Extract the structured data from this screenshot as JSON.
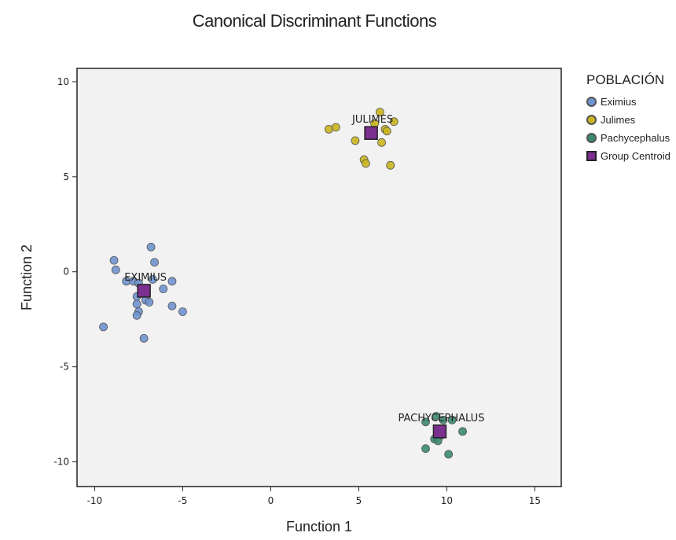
{
  "chart_data": {
    "type": "scatter",
    "title": "Canonical Discriminant Functions",
    "xlabel": "Function 1",
    "ylabel": "Function 2",
    "xlim": [
      -11,
      16.5
    ],
    "ylim": [
      -11.3,
      10.7
    ],
    "xticks": [
      -10,
      -5,
      0,
      5,
      10,
      15
    ],
    "yticks": [
      -10,
      -5,
      0,
      5,
      10
    ],
    "legend_title": "POBLACIÓN",
    "series": [
      {
        "name": "Eximius",
        "color": "#6f93d0",
        "points": [
          [
            -9.5,
            -2.9
          ],
          [
            -8.9,
            0.6
          ],
          [
            -8.8,
            0.1
          ],
          [
            -8.2,
            -0.5
          ],
          [
            -7.8,
            -0.5
          ],
          [
            -7.6,
            -1.3
          ],
          [
            -7.6,
            -1.7
          ],
          [
            -7.5,
            -2.1
          ],
          [
            -7.6,
            -2.3
          ],
          [
            -7.5,
            -0.6
          ],
          [
            -7.2,
            -3.5
          ],
          [
            -7.1,
            -1.5
          ],
          [
            -6.9,
            -1.6
          ],
          [
            -6.8,
            1.3
          ],
          [
            -6.6,
            0.5
          ],
          [
            -6.7,
            -0.4
          ],
          [
            -6.1,
            -0.9
          ],
          [
            -5.6,
            -0.5
          ],
          [
            -5.6,
            -1.8
          ],
          [
            -5.0,
            -2.1
          ]
        ]
      },
      {
        "name": "Julimes",
        "color": "#c9b61e",
        "points": [
          [
            3.3,
            7.5
          ],
          [
            3.7,
            7.6
          ],
          [
            4.8,
            6.9
          ],
          [
            5.3,
            5.9
          ],
          [
            5.4,
            5.7
          ],
          [
            5.9,
            7.8
          ],
          [
            6.2,
            8.4
          ],
          [
            6.3,
            6.8
          ],
          [
            6.5,
            7.5
          ],
          [
            6.6,
            7.4
          ],
          [
            6.8,
            5.6
          ],
          [
            7.0,
            7.9
          ]
        ]
      },
      {
        "name": "Pachycephalus",
        "color": "#3a8a72",
        "points": [
          [
            8.8,
            -7.9
          ],
          [
            8.8,
            -9.3
          ],
          [
            9.3,
            -8.8
          ],
          [
            9.4,
            -7.6
          ],
          [
            9.5,
            -8.9
          ],
          [
            9.7,
            -8.6
          ],
          [
            9.8,
            -7.8
          ],
          [
            10.1,
            -9.6
          ],
          [
            10.3,
            -7.8
          ],
          [
            10.9,
            -8.4
          ]
        ]
      }
    ],
    "centroids": [
      {
        "label": "EXIMIUS",
        "x": -7.2,
        "y": -1.0
      },
      {
        "label": "JULIMES",
        "x": 5.7,
        "y": 7.3
      },
      {
        "label": "PACHYCEPHALUS",
        "x": 9.6,
        "y": -8.4
      }
    ],
    "centroid_legend": "Group Centroid",
    "centroid_color": "#7b2f8e",
    "plot_background": "#f2f2f2"
  }
}
